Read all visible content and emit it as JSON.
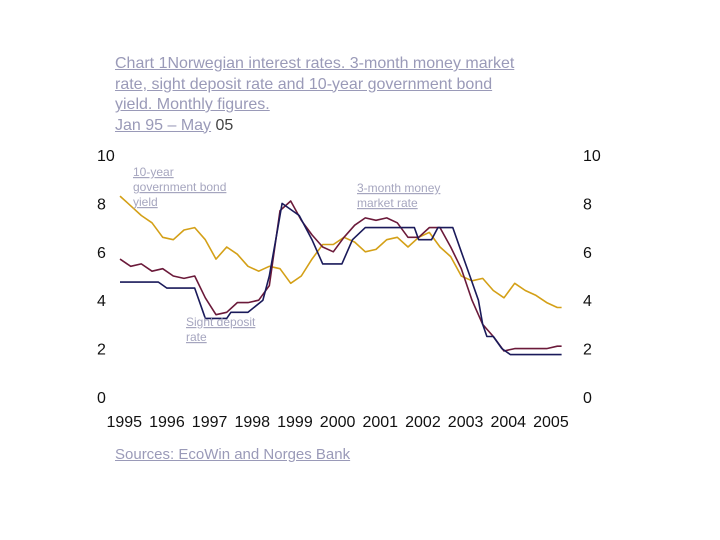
{
  "title": {
    "line1_a": "Chart 1",
    "line1_b": "Norwegian interest rates. 3-month money market",
    "line2": "rate, sight deposit rate and 10-year government bond",
    "line3": "yield. Monthly figures.",
    "line4_a": "Jan 95 – May",
    "line4_b": " 05"
  },
  "source": "Sources: EcoWin and Norges Bank",
  "chart_data": {
    "type": "line",
    "xlim": [
      1995.0,
      2005.5
    ],
    "ylim": [
      0,
      10
    ],
    "yticks": [
      "0",
      "2",
      "4",
      "6",
      "8",
      "10"
    ],
    "xticks": [
      "1995",
      "1996",
      "1997",
      "1998",
      "1999",
      "2000",
      "2001",
      "2002",
      "2003",
      "2004",
      "2005"
    ],
    "grid": false,
    "annotations": [
      {
        "lines": [
          "10-year",
          "government bond",
          "yield"
        ]
      },
      {
        "lines": [
          "3-month money",
          "market rate"
        ]
      },
      {
        "lines": [
          "Sight deposit",
          "rate"
        ]
      }
    ],
    "series": [
      {
        "color": "#d4a017",
        "points": [
          [
            1995.0,
            8.3
          ],
          [
            1995.25,
            7.9
          ],
          [
            1995.5,
            7.5
          ],
          [
            1995.75,
            7.2
          ],
          [
            1996.0,
            6.6
          ],
          [
            1996.25,
            6.5
          ],
          [
            1996.5,
            6.9
          ],
          [
            1996.75,
            7.0
          ],
          [
            1997.0,
            6.5
          ],
          [
            1997.25,
            5.7
          ],
          [
            1997.5,
            6.2
          ],
          [
            1997.75,
            5.9
          ],
          [
            1998.0,
            5.4
          ],
          [
            1998.25,
            5.2
          ],
          [
            1998.5,
            5.4
          ],
          [
            1998.75,
            5.3
          ],
          [
            1999.0,
            4.7
          ],
          [
            1999.25,
            5.0
          ],
          [
            1999.5,
            5.7
          ],
          [
            1999.75,
            6.3
          ],
          [
            2000.0,
            6.3
          ],
          [
            2000.25,
            6.6
          ],
          [
            2000.5,
            6.4
          ],
          [
            2000.75,
            6.0
          ],
          [
            2001.0,
            6.1
          ],
          [
            2001.25,
            6.5
          ],
          [
            2001.5,
            6.6
          ],
          [
            2001.75,
            6.2
          ],
          [
            2002.0,
            6.6
          ],
          [
            2002.25,
            6.8
          ],
          [
            2002.5,
            6.2
          ],
          [
            2002.75,
            5.8
          ],
          [
            2003.0,
            5.0
          ],
          [
            2003.25,
            4.8
          ],
          [
            2003.5,
            4.9
          ],
          [
            2003.75,
            4.4
          ],
          [
            2004.0,
            4.1
          ],
          [
            2004.25,
            4.7
          ],
          [
            2004.5,
            4.4
          ],
          [
            2004.75,
            4.2
          ],
          [
            2005.0,
            3.9
          ],
          [
            2005.25,
            3.7
          ],
          [
            2005.35,
            3.7
          ]
        ]
      },
      {
        "color": "#6b1a3a",
        "points": [
          [
            1995.0,
            5.7
          ],
          [
            1995.25,
            5.4
          ],
          [
            1995.5,
            5.5
          ],
          [
            1995.75,
            5.2
          ],
          [
            1996.0,
            5.3
          ],
          [
            1996.25,
            5.0
          ],
          [
            1996.5,
            4.9
          ],
          [
            1996.75,
            5.0
          ],
          [
            1997.0,
            4.1
          ],
          [
            1997.25,
            3.4
          ],
          [
            1997.5,
            3.5
          ],
          [
            1997.75,
            3.9
          ],
          [
            1998.0,
            3.9
          ],
          [
            1998.25,
            4.0
          ],
          [
            1998.5,
            4.6
          ],
          [
            1998.75,
            7.7
          ],
          [
            1999.0,
            8.1
          ],
          [
            1999.25,
            7.3
          ],
          [
            1999.5,
            6.7
          ],
          [
            1999.75,
            6.2
          ],
          [
            2000.0,
            6.0
          ],
          [
            2000.25,
            6.6
          ],
          [
            2000.5,
            7.1
          ],
          [
            2000.75,
            7.4
          ],
          [
            2001.0,
            7.3
          ],
          [
            2001.25,
            7.4
          ],
          [
            2001.5,
            7.2
          ],
          [
            2001.75,
            6.6
          ],
          [
            2002.0,
            6.6
          ],
          [
            2002.25,
            7.0
          ],
          [
            2002.5,
            7.0
          ],
          [
            2002.75,
            6.2
          ],
          [
            2003.0,
            5.3
          ],
          [
            2003.25,
            4.0
          ],
          [
            2003.5,
            3.0
          ],
          [
            2003.75,
            2.5
          ],
          [
            2004.0,
            1.9
          ],
          [
            2004.25,
            2.0
          ],
          [
            2004.5,
            2.0
          ],
          [
            2004.75,
            2.0
          ],
          [
            2005.0,
            2.0
          ],
          [
            2005.25,
            2.1
          ],
          [
            2005.35,
            2.1
          ]
        ]
      },
      {
        "color": "#1a1a5a",
        "points": [
          [
            1995.0,
            4.75
          ],
          [
            1995.4,
            4.75
          ],
          [
            1995.9,
            4.75
          ],
          [
            1996.1,
            4.5
          ],
          [
            1996.75,
            4.5
          ],
          [
            1996.95,
            3.5
          ],
          [
            1997.0,
            3.25
          ],
          [
            1997.5,
            3.25
          ],
          [
            1997.6,
            3.5
          ],
          [
            1998.0,
            3.5
          ],
          [
            1998.35,
            4.0
          ],
          [
            1998.5,
            5.0
          ],
          [
            1998.7,
            7.0
          ],
          [
            1998.8,
            8.0
          ],
          [
            1999.2,
            7.5
          ],
          [
            1999.35,
            7.0
          ],
          [
            1999.5,
            6.5
          ],
          [
            1999.75,
            5.5
          ],
          [
            2000.2,
            5.5
          ],
          [
            2000.45,
            6.5
          ],
          [
            2000.75,
            7.0
          ],
          [
            2001.9,
            7.0
          ],
          [
            2002.0,
            6.5
          ],
          [
            2002.3,
            6.5
          ],
          [
            2002.45,
            7.0
          ],
          [
            2002.8,
            7.0
          ],
          [
            2003.0,
            6.0
          ],
          [
            2003.1,
            5.5
          ],
          [
            2003.2,
            5.0
          ],
          [
            2003.4,
            4.0
          ],
          [
            2003.5,
            3.0
          ],
          [
            2003.6,
            2.5
          ],
          [
            2003.75,
            2.5
          ],
          [
            2003.95,
            2.0
          ],
          [
            2004.15,
            1.75
          ],
          [
            2005.35,
            1.75
          ]
        ]
      }
    ]
  }
}
